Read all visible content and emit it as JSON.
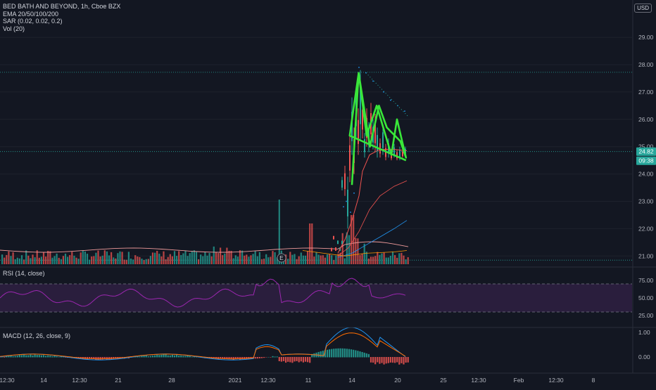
{
  "symbol_line": "BED BATH AND BEYOND, 1h, Cboe BZX",
  "indicators": [
    "EMA 20/50/100/200",
    "SAR (0.02, 0.02, 0.2)",
    "Vol (20)"
  ],
  "currency_button": "USD",
  "price_axis": {
    "ticks": [
      "29.00",
      "28.00",
      "27.00",
      "26.00",
      "25.00",
      "24.00",
      "23.00",
      "22.00",
      "21.00"
    ]
  },
  "price_badges": {
    "last": "24.82",
    "countdown": "09:38"
  },
  "earnings_marker": "E",
  "rsi": {
    "label": "RSI (14, close)",
    "ticks": [
      "75.00",
      "50.00",
      "25.00"
    ],
    "upper": 70,
    "lower": 30
  },
  "macd": {
    "label": "MACD (12, 26, close, 9)",
    "ticks": [
      "1.00",
      "0.00"
    ]
  },
  "time_axis": [
    "12:30",
    "14",
    "12:30",
    "21",
    "28",
    "2021",
    "12:30",
    "11",
    "14",
    "20",
    "25",
    "12:30",
    "Feb",
    "12:30",
    "8"
  ],
  "colors": {
    "up": "#26a69a",
    "down": "#ef5350",
    "pattern": "#39e639",
    "rsi_line": "#9c27b0",
    "rsi_band": "#2a1e3d",
    "macd_line": "#2196f3",
    "signal_line": "#ff6d00",
    "ema_red": "#ef5350",
    "ema_blue": "#2196f3",
    "ema_orange": "#ff9800"
  },
  "chart_data": {
    "type": "line",
    "title": "BED BATH AND BEYOND, 1h, Cboe BZX",
    "price_ylim": [
      20.9,
      29.5
    ],
    "last_price": 24.82,
    "pattern_polyline": [
      [
        0.0,
        23.6
      ],
      [
        0.6,
        27.7
      ],
      [
        1.3,
        25.4
      ],
      [
        2.2,
        26.5
      ],
      [
        3.5,
        24.7
      ],
      [
        4.0,
        26.0
      ],
      [
        4.8,
        24.6
      ],
      [
        4.3,
        25.2
      ],
      [
        3.1,
        25.7
      ],
      [
        2.4,
        26.5
      ],
      [
        1.6,
        25.0
      ],
      [
        0.6,
        27.7
      ],
      [
        -0.2,
        25.4
      ],
      [
        4.8,
        24.5
      ]
    ],
    "resistance_level": 27.72,
    "support_level": 20.9
  }
}
